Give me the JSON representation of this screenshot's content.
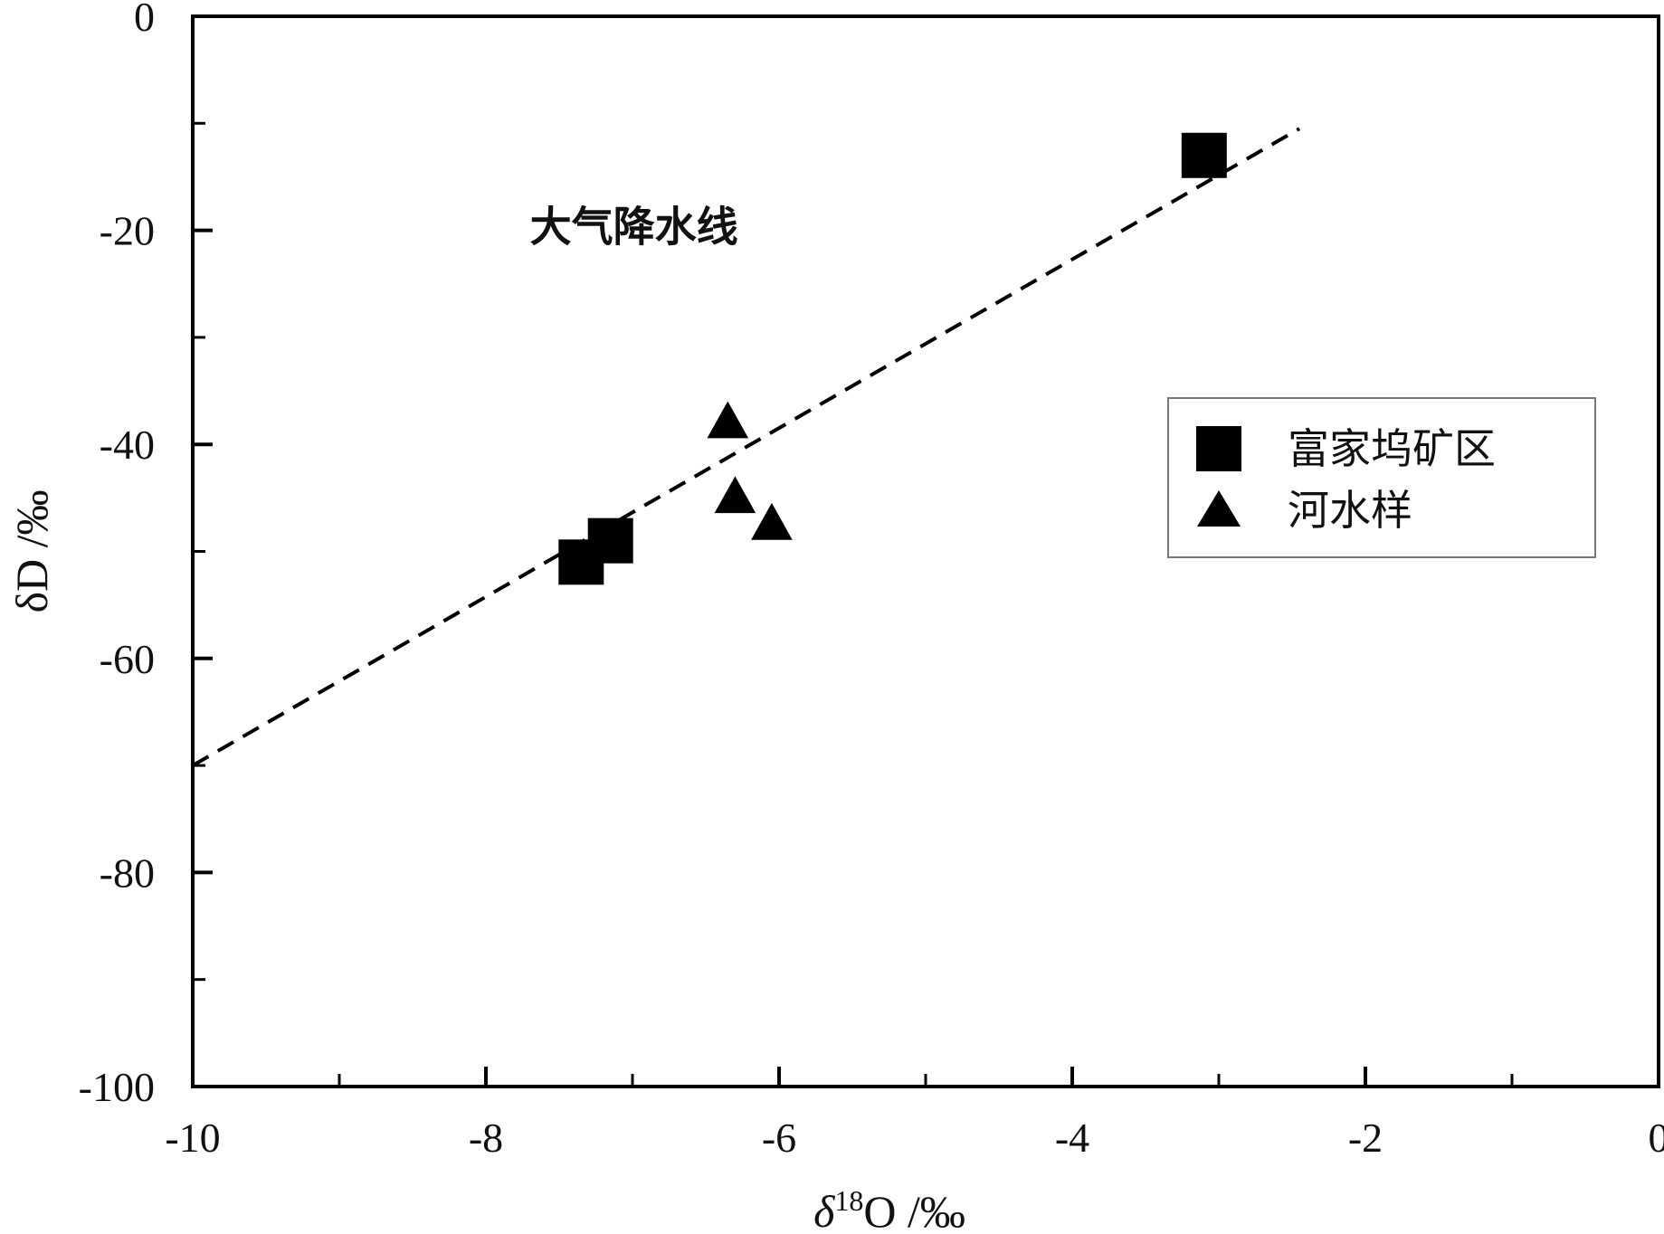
{
  "chart_data": {
    "type": "scatter",
    "title": "",
    "xlabel": "δ18O /‰",
    "xlabel_parts": {
      "symbol": "δ",
      "sup": "18",
      "rest": "O /‰"
    },
    "ylabel": "δD /‰",
    "xlim": [
      -10,
      0
    ],
    "ylim": [
      -100,
      0
    ],
    "x_ticks": [
      -10,
      -8,
      -6,
      -4,
      -2,
      0
    ],
    "x_tick_labels": [
      "-10",
      "-8",
      "-6",
      "-4",
      "-2",
      "0"
    ],
    "x_minor_ticks": [
      -9,
      -7,
      -5,
      -3,
      -1
    ],
    "y_ticks": [
      0,
      -20,
      -40,
      -60,
      -80,
      -100
    ],
    "y_tick_labels": [
      "0",
      "-20",
      "-40",
      "-60",
      "-80",
      "-100"
    ],
    "y_minor_ticks": [
      -10,
      -30,
      -50,
      -70,
      -90
    ],
    "grid": false,
    "legend_position": "right",
    "series": [
      {
        "name": "富家坞矿区",
        "marker": "square",
        "color": "#000000",
        "points": [
          {
            "x": -3.1,
            "y": -13
          },
          {
            "x": -7.15,
            "y": -49
          },
          {
            "x": -7.35,
            "y": -51
          }
        ]
      },
      {
        "name": "河水样",
        "marker": "triangle",
        "color": "#000000",
        "points": [
          {
            "x": -6.35,
            "y": -38
          },
          {
            "x": -6.3,
            "y": -45
          },
          {
            "x": -6.05,
            "y": -47.5
          }
        ]
      }
    ],
    "reference_lines": [
      {
        "name": "大气降水线",
        "style": "dashed",
        "color": "#000000",
        "from": {
          "x": -10,
          "y": -70
        },
        "to": {
          "x": -2.45,
          "y": -10.5
        }
      }
    ],
    "annotations": [
      {
        "text": "大气降水线",
        "x": -7.7,
        "y": -21
      }
    ]
  }
}
